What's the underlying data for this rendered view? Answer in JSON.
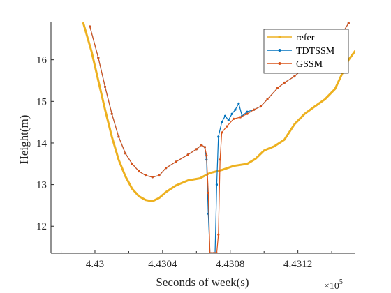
{
  "chart_data": {
    "type": "line",
    "title": "",
    "xlabel": "Seconds of week(s)",
    "ylabel": "Height(m)",
    "x_multiplier": {
      "base": "×10",
      "exponent": "5"
    },
    "x_scale_factor": 100000,
    "xlim": [
      4.42974,
      4.43154
    ],
    "ylim": [
      11.35,
      16.9
    ],
    "x_ticks": [
      4.43,
      4.4304,
      4.4308,
      4.4312
    ],
    "x_tick_labels": [
      "4.43",
      "4.4304",
      "4.4308",
      "4.4312"
    ],
    "y_ticks": [
      12,
      13,
      14,
      15,
      16
    ],
    "y_tick_labels": [
      "12",
      "13",
      "14",
      "15",
      "16"
    ],
    "grid": false,
    "legend_position": "top-right",
    "series": [
      {
        "name": "refer",
        "color": "#EDB120",
        "marker": false,
        "x": [
          4.42993,
          4.42998,
          4.43002,
          4.43006,
          4.4301,
          4.43014,
          4.43018,
          4.43022,
          4.43026,
          4.4303,
          4.43034,
          4.43038,
          4.43042,
          4.43048,
          4.43055,
          4.43062,
          4.43068,
          4.43075,
          4.43082,
          4.4309,
          4.43095,
          4.431,
          4.43106,
          4.43112,
          4.43118,
          4.43124,
          4.4313,
          4.43136,
          4.43142,
          4.4315,
          4.43154
        ],
        "y": [
          16.9,
          16.2,
          15.5,
          14.8,
          14.15,
          13.6,
          13.2,
          12.9,
          12.72,
          12.63,
          12.6,
          12.68,
          12.82,
          12.98,
          13.1,
          13.15,
          13.28,
          13.35,
          13.45,
          13.5,
          13.62,
          13.82,
          13.92,
          14.08,
          14.45,
          14.7,
          14.88,
          15.05,
          15.3,
          16.0,
          16.22
        ]
      },
      {
        "name": "TDTSSM",
        "color": "#0072BD",
        "marker": true,
        "x": [
          4.42997,
          4.43002,
          4.43006,
          4.4301,
          4.43014,
          4.43018,
          4.43022,
          4.43026,
          4.4303,
          4.43034,
          4.43038,
          4.43042,
          4.43048,
          4.43055,
          4.4306,
          4.43063,
          4.43065,
          4.43066,
          4.43067,
          4.43068,
          4.43069,
          4.4307,
          4.43071,
          4.43072,
          4.43073,
          4.43075,
          4.43077,
          4.43079,
          4.43081,
          4.43083,
          4.43085,
          4.43087,
          4.4309,
          4.43094,
          4.43098,
          4.43102,
          4.43108,
          4.43112,
          4.43118,
          4.43122,
          4.43126,
          4.4313,
          4.43134,
          4.43138,
          4.43142,
          4.43146,
          4.4315
        ],
        "y": [
          16.8,
          16.05,
          15.35,
          14.7,
          14.15,
          13.75,
          13.5,
          13.32,
          13.22,
          13.18,
          13.22,
          13.4,
          13.55,
          13.72,
          13.85,
          13.95,
          13.9,
          13.6,
          12.3,
          11.35,
          11.35,
          11.35,
          11.35,
          13.0,
          14.15,
          14.5,
          14.65,
          14.55,
          14.7,
          14.8,
          14.95,
          14.65,
          14.75,
          14.8,
          14.88,
          15.05,
          15.32,
          15.45,
          15.6,
          15.75,
          15.88,
          16.0,
          16.12,
          16.25,
          16.4,
          16.62,
          16.88
        ]
      },
      {
        "name": "GSSM",
        "color": "#D95319",
        "marker": true,
        "x": [
          4.42997,
          4.43002,
          4.43006,
          4.4301,
          4.43014,
          4.43018,
          4.43022,
          4.43026,
          4.4303,
          4.43034,
          4.43038,
          4.43042,
          4.43048,
          4.43055,
          4.4306,
          4.43063,
          4.43065,
          4.43066,
          4.43067,
          4.43068,
          4.43069,
          4.4307,
          4.43071,
          4.43072,
          4.43073,
          4.43074,
          4.43075,
          4.43078,
          4.43082,
          4.43086,
          4.4309,
          4.43094,
          4.43098,
          4.43102,
          4.43108,
          4.43112,
          4.43118,
          4.43122,
          4.43126,
          4.4313,
          4.43134,
          4.43138,
          4.43142,
          4.43146,
          4.4315
        ],
        "y": [
          16.8,
          16.05,
          15.35,
          14.7,
          14.15,
          13.75,
          13.5,
          13.32,
          13.22,
          13.18,
          13.22,
          13.4,
          13.55,
          13.72,
          13.85,
          13.95,
          13.9,
          13.7,
          12.8,
          11.35,
          11.35,
          11.35,
          11.35,
          11.35,
          11.8,
          13.6,
          14.25,
          14.4,
          14.58,
          14.62,
          14.7,
          14.8,
          14.88,
          15.05,
          15.32,
          15.45,
          15.6,
          15.75,
          15.88,
          16.0,
          16.12,
          16.25,
          16.4,
          16.62,
          16.88
        ]
      }
    ]
  }
}
